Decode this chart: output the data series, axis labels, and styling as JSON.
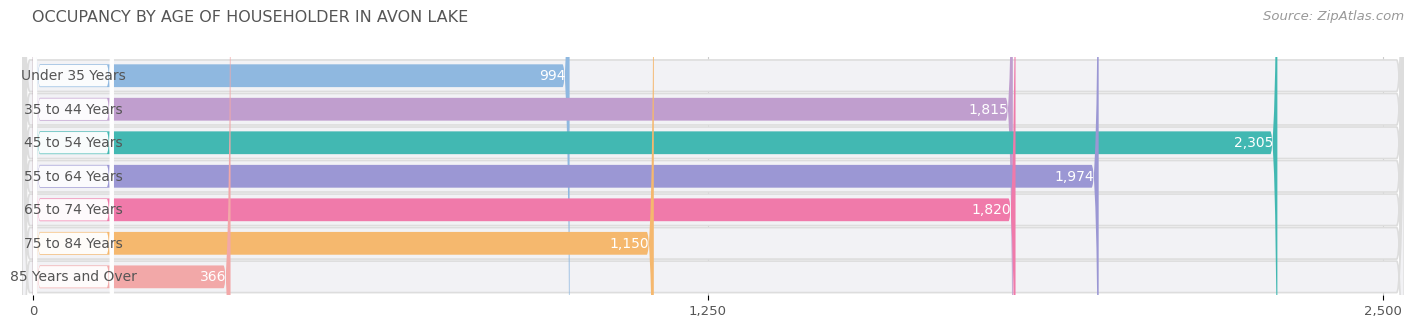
{
  "title": "OCCUPANCY BY AGE OF HOUSEHOLDER IN AVON LAKE",
  "source": "Source: ZipAtlas.com",
  "categories": [
    "Under 35 Years",
    "35 to 44 Years",
    "45 to 54 Years",
    "55 to 64 Years",
    "65 to 74 Years",
    "75 to 84 Years",
    "85 Years and Over"
  ],
  "values": [
    994,
    1815,
    2305,
    1974,
    1820,
    1150,
    366
  ],
  "bar_colors": [
    "#8fb8e0",
    "#c09ece",
    "#42b8b2",
    "#9b97d4",
    "#f07aaa",
    "#f5b86e",
    "#f2a8a8"
  ],
  "bar_bg_colors": [
    "#ebebf0",
    "#ebebf0",
    "#ebebf0",
    "#ebebf0",
    "#ebebf0",
    "#ebebf0",
    "#ebebf0"
  ],
  "bar_row_bg": "#f7f7f9",
  "xlim": [
    0,
    2500
  ],
  "xticks": [
    0,
    1250,
    2500
  ],
  "background_color": "#ffffff",
  "title_color": "#555555",
  "source_color": "#999999",
  "label_color": "#555555",
  "value_color_inside": "#ffffff",
  "value_color_outside": "#555555",
  "title_fontsize": 11.5,
  "source_fontsize": 9.5,
  "label_fontsize": 10,
  "value_fontsize": 10,
  "tick_fontsize": 9.5
}
